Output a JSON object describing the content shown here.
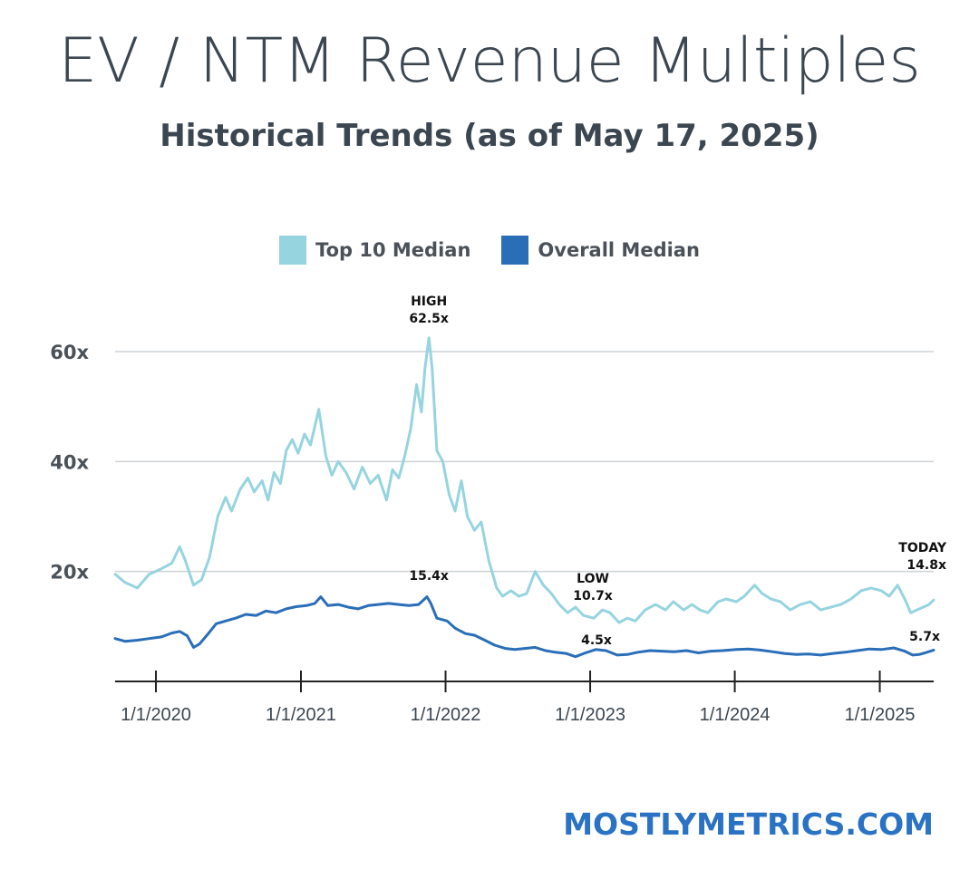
{
  "title": "EV / NTM Revenue Multiples",
  "subtitle": "Historical Trends (as of May 17, 2025)",
  "brand": "MOSTLYMETRICS.COM",
  "colors": {
    "top10": "#96d4df",
    "overall": "#2a6eb8",
    "text": "#3b4650",
    "brand": "#2a72c4"
  },
  "chart_data": {
    "type": "line",
    "title": "EV / NTM Revenue Multiples",
    "subtitle": "Historical Trends (as of May 17, 2025)",
    "legend_position": "top-center",
    "grid": "horizontal",
    "ylim": [
      0,
      70
    ],
    "y_ticks": [
      {
        "value": 20,
        "label": "20x"
      },
      {
        "value": 40,
        "label": "40x"
      },
      {
        "value": 60,
        "label": "60x"
      }
    ],
    "xlim": [
      "2019-09-20",
      "2025-05-17"
    ],
    "x_ticks": [
      {
        "date": "2020-01-01",
        "label": "1/1/2020"
      },
      {
        "date": "2021-01-01",
        "label": "1/1/2021"
      },
      {
        "date": "2022-01-01",
        "label": "1/1/2022"
      },
      {
        "date": "2023-01-01",
        "label": "1/1/2023"
      },
      {
        "date": "2024-01-01",
        "label": "1/1/2024"
      },
      {
        "date": "2025-01-01",
        "label": "1/1/2025"
      }
    ],
    "series": [
      {
        "name": "Top 10 Median",
        "points": [
          [
            "2019-09-20",
            19.5
          ],
          [
            "2019-10-15",
            18.0
          ],
          [
            "2019-11-15",
            17.0
          ],
          [
            "2019-12-15",
            19.5
          ],
          [
            "2020-01-15",
            20.5
          ],
          [
            "2020-02-10",
            21.5
          ],
          [
            "2020-03-01",
            24.5
          ],
          [
            "2020-03-15",
            22.0
          ],
          [
            "2020-04-05",
            17.5
          ],
          [
            "2020-04-25",
            18.5
          ],
          [
            "2020-05-15",
            22.5
          ],
          [
            "2020-06-05",
            30.0
          ],
          [
            "2020-06-25",
            33.5
          ],
          [
            "2020-07-10",
            31.0
          ],
          [
            "2020-08-01",
            35.0
          ],
          [
            "2020-08-20",
            37.0
          ],
          [
            "2020-09-05",
            34.5
          ],
          [
            "2020-09-25",
            36.5
          ],
          [
            "2020-10-10",
            33.0
          ],
          [
            "2020-10-25",
            38.0
          ],
          [
            "2020-11-10",
            36.0
          ],
          [
            "2020-11-25",
            42.0
          ],
          [
            "2020-12-10",
            44.0
          ],
          [
            "2020-12-25",
            41.5
          ],
          [
            "2021-01-10",
            45.0
          ],
          [
            "2021-01-25",
            43.0
          ],
          [
            "2021-02-15",
            49.5
          ],
          [
            "2021-03-05",
            41.0
          ],
          [
            "2021-03-20",
            37.5
          ],
          [
            "2021-04-05",
            40.0
          ],
          [
            "2021-04-25",
            38.0
          ],
          [
            "2021-05-15",
            35.0
          ],
          [
            "2021-06-05",
            39.0
          ],
          [
            "2021-06-25",
            36.0
          ],
          [
            "2021-07-15",
            37.5
          ],
          [
            "2021-08-05",
            33.0
          ],
          [
            "2021-08-20",
            38.5
          ],
          [
            "2021-09-05",
            37.0
          ],
          [
            "2021-09-20",
            41.0
          ],
          [
            "2021-10-05",
            46.0
          ],
          [
            "2021-10-20",
            54.0
          ],
          [
            "2021-11-01",
            49.0
          ],
          [
            "2021-11-10",
            57.0
          ],
          [
            "2021-11-20",
            62.5
          ],
          [
            "2021-11-28",
            57.0
          ],
          [
            "2021-12-10",
            42.0
          ],
          [
            "2021-12-25",
            40.0
          ],
          [
            "2022-01-10",
            34.0
          ],
          [
            "2022-01-25",
            31.0
          ],
          [
            "2022-02-10",
            36.5
          ],
          [
            "2022-02-25",
            30.0
          ],
          [
            "2022-03-15",
            27.5
          ],
          [
            "2022-04-01",
            29.0
          ],
          [
            "2022-04-20",
            22.0
          ],
          [
            "2022-05-10",
            17.0
          ],
          [
            "2022-05-25",
            15.5
          ],
          [
            "2022-06-15",
            16.5
          ],
          [
            "2022-07-05",
            15.5
          ],
          [
            "2022-07-25",
            16.0
          ],
          [
            "2022-08-15",
            20.0
          ],
          [
            "2022-09-05",
            17.5
          ],
          [
            "2022-09-25",
            16.0
          ],
          [
            "2022-10-15",
            14.0
          ],
          [
            "2022-11-05",
            12.5
          ],
          [
            "2022-11-25",
            13.5
          ],
          [
            "2022-12-15",
            12.0
          ],
          [
            "2023-01-10",
            11.5
          ],
          [
            "2023-02-01",
            13.0
          ],
          [
            "2023-02-20",
            12.5
          ],
          [
            "2023-03-15",
            10.7
          ],
          [
            "2023-04-05",
            11.5
          ],
          [
            "2023-04-25",
            11.0
          ],
          [
            "2023-05-20",
            13.0
          ],
          [
            "2023-06-15",
            14.0
          ],
          [
            "2023-07-10",
            13.0
          ],
          [
            "2023-07-30",
            14.5
          ],
          [
            "2023-08-25",
            13.0
          ],
          [
            "2023-09-15",
            14.0
          ],
          [
            "2023-10-05",
            13.0
          ],
          [
            "2023-10-25",
            12.5
          ],
          [
            "2023-11-20",
            14.5
          ],
          [
            "2023-12-10",
            15.0
          ],
          [
            "2024-01-05",
            14.5
          ],
          [
            "2024-01-25",
            15.5
          ],
          [
            "2024-02-20",
            17.5
          ],
          [
            "2024-03-10",
            16.0
          ],
          [
            "2024-04-01",
            15.0
          ],
          [
            "2024-04-25",
            14.5
          ],
          [
            "2024-05-20",
            13.0
          ],
          [
            "2024-06-15",
            14.0
          ],
          [
            "2024-07-10",
            14.5
          ],
          [
            "2024-08-05",
            13.0
          ],
          [
            "2024-08-30",
            13.5
          ],
          [
            "2024-09-25",
            14.0
          ],
          [
            "2024-10-20",
            15.0
          ],
          [
            "2024-11-15",
            16.5
          ],
          [
            "2024-12-10",
            17.0
          ],
          [
            "2025-01-05",
            16.5
          ],
          [
            "2025-01-25",
            15.5
          ],
          [
            "2025-02-15",
            17.5
          ],
          [
            "2025-03-05",
            15.0
          ],
          [
            "2025-03-20",
            12.5
          ],
          [
            "2025-04-05",
            13.0
          ],
          [
            "2025-04-20",
            13.5
          ],
          [
            "2025-05-05",
            14.0
          ],
          [
            "2025-05-17",
            14.8
          ]
        ]
      },
      {
        "name": "Overall Median",
        "points": [
          [
            "2019-09-20",
            7.8
          ],
          [
            "2019-10-15",
            7.3
          ],
          [
            "2019-11-15",
            7.5
          ],
          [
            "2019-12-15",
            7.8
          ],
          [
            "2020-01-15",
            8.1
          ],
          [
            "2020-02-10",
            8.8
          ],
          [
            "2020-03-01",
            9.1
          ],
          [
            "2020-03-20",
            8.3
          ],
          [
            "2020-04-05",
            6.2
          ],
          [
            "2020-04-20",
            6.8
          ],
          [
            "2020-05-10",
            8.5
          ],
          [
            "2020-06-01",
            10.5
          ],
          [
            "2020-06-25",
            11.0
          ],
          [
            "2020-07-20",
            11.5
          ],
          [
            "2020-08-15",
            12.2
          ],
          [
            "2020-09-10",
            12.0
          ],
          [
            "2020-10-05",
            12.8
          ],
          [
            "2020-10-30",
            12.5
          ],
          [
            "2020-11-25",
            13.2
          ],
          [
            "2020-12-20",
            13.6
          ],
          [
            "2021-01-15",
            13.8
          ],
          [
            "2021-02-05",
            14.2
          ],
          [
            "2021-02-20",
            15.4
          ],
          [
            "2021-03-10",
            13.8
          ],
          [
            "2021-04-05",
            14.0
          ],
          [
            "2021-05-01",
            13.5
          ],
          [
            "2021-05-25",
            13.2
          ],
          [
            "2021-06-20",
            13.8
          ],
          [
            "2021-07-15",
            14.0
          ],
          [
            "2021-08-10",
            14.2
          ],
          [
            "2021-09-05",
            14.0
          ],
          [
            "2021-10-01",
            13.8
          ],
          [
            "2021-10-25",
            14.0
          ],
          [
            "2021-11-15",
            15.4
          ],
          [
            "2021-11-25",
            14.2
          ],
          [
            "2021-12-10",
            11.5
          ],
          [
            "2022-01-05",
            11.0
          ],
          [
            "2022-01-25",
            9.7
          ],
          [
            "2022-02-20",
            8.7
          ],
          [
            "2022-03-15",
            8.4
          ],
          [
            "2022-04-10",
            7.5
          ],
          [
            "2022-05-05",
            6.6
          ],
          [
            "2022-06-01",
            6.0
          ],
          [
            "2022-06-25",
            5.8
          ],
          [
            "2022-07-20",
            6.0
          ],
          [
            "2022-08-15",
            6.2
          ],
          [
            "2022-09-10",
            5.6
          ],
          [
            "2022-10-05",
            5.3
          ],
          [
            "2022-11-01",
            5.1
          ],
          [
            "2022-11-25",
            4.5
          ],
          [
            "2022-12-20",
            5.2
          ],
          [
            "2023-01-15",
            5.8
          ],
          [
            "2023-02-10",
            5.6
          ],
          [
            "2023-03-10",
            4.8
          ],
          [
            "2023-04-05",
            4.9
          ],
          [
            "2023-05-01",
            5.3
          ],
          [
            "2023-06-01",
            5.6
          ],
          [
            "2023-07-01",
            5.5
          ],
          [
            "2023-08-01",
            5.4
          ],
          [
            "2023-09-01",
            5.6
          ],
          [
            "2023-10-01",
            5.2
          ],
          [
            "2023-11-01",
            5.5
          ],
          [
            "2023-12-01",
            5.6
          ],
          [
            "2024-01-05",
            5.8
          ],
          [
            "2024-02-05",
            5.9
          ],
          [
            "2024-03-05",
            5.7
          ],
          [
            "2024-04-05",
            5.4
          ],
          [
            "2024-05-05",
            5.1
          ],
          [
            "2024-06-05",
            4.9
          ],
          [
            "2024-07-05",
            5.0
          ],
          [
            "2024-08-05",
            4.8
          ],
          [
            "2024-09-05",
            5.1
          ],
          [
            "2024-10-05",
            5.3
          ],
          [
            "2024-11-05",
            5.6
          ],
          [
            "2024-12-05",
            5.9
          ],
          [
            "2025-01-05",
            5.8
          ],
          [
            "2025-02-05",
            6.1
          ],
          [
            "2025-03-05",
            5.5
          ],
          [
            "2025-03-25",
            4.8
          ],
          [
            "2025-04-10",
            4.9
          ],
          [
            "2025-04-25",
            5.2
          ],
          [
            "2025-05-17",
            5.7
          ]
        ]
      }
    ],
    "annotations": [
      {
        "series": "Top 10 Median",
        "date": "2021-11-20",
        "value": 62.5,
        "lines": [
          "HIGH",
          "62.5x"
        ]
      },
      {
        "series": "Overall Median",
        "date": "2021-11-20",
        "value": 15.4,
        "lines": [
          "15.4x"
        ]
      },
      {
        "series": "Top 10 Median",
        "date": "2023-01-01",
        "value": 10.7,
        "lines": [
          "LOW",
          "10.7x"
        ]
      },
      {
        "series": "Overall Median",
        "date": "2023-01-01",
        "value": 4.5,
        "lines": [
          "4.5x"
        ]
      },
      {
        "series": "Top 10 Median",
        "date": "2025-05-17",
        "value": 14.8,
        "lines": [
          "TODAY",
          "14.8x"
        ]
      },
      {
        "series": "Overall Median",
        "date": "2025-05-17",
        "value": 5.7,
        "lines": [
          "5.7x"
        ]
      }
    ]
  }
}
